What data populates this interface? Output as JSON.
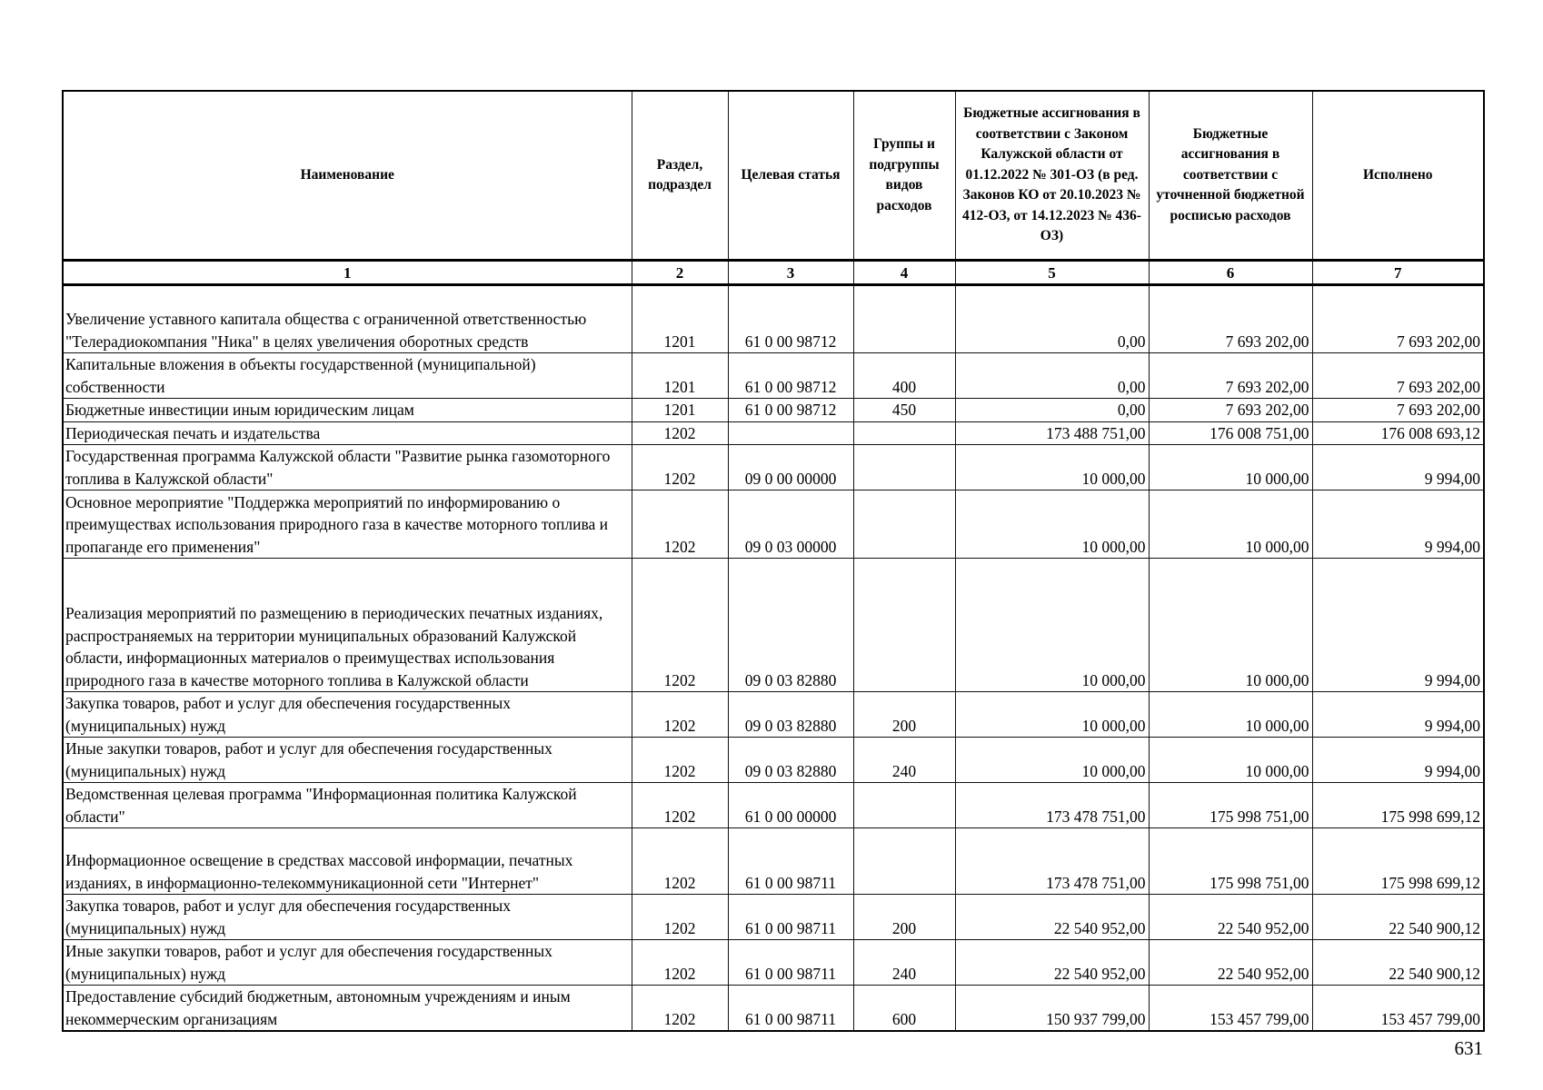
{
  "headers": [
    "Наименование",
    "Раздел, подраздел",
    "Целевая статья",
    "Группы и подгруппы видов расходов",
    "Бюджетные ассигнования в соответствии с Законом Калужской области от 01.12.2022 № 301-ОЗ (в ред. Законов КО от 20.10.2023 № 412-ОЗ, от 14.12.2023 № 436-ОЗ)",
    "Бюджетные ассигнования в соответствии с уточненной бюджетной росписью расходов",
    "Исполнено"
  ],
  "column_numbers": [
    "1",
    "2",
    "3",
    "4",
    "5",
    "6",
    "7"
  ],
  "rows": [
    {
      "name": "Увеличение уставного капитала общества с ограниченной ответственностью \"Телерадиокомпания \"Ника\" в целях увеличения оборотных средств",
      "section": "1201",
      "article": "61 0 00 98712",
      "group": "",
      "law": "0,00",
      "plan": "7 693 202,00",
      "done": "7 693 202,00"
    },
    {
      "name": "Капитальные вложения в объекты государственной (муниципальной) собственности",
      "section": "1201",
      "article": "61 0 00 98712",
      "group": "400",
      "law": "0,00",
      "plan": "7 693 202,00",
      "done": "7 693 202,00"
    },
    {
      "name": "Бюджетные инвестиции иным юридическим лицам",
      "section": "1201",
      "article": "61 0 00 98712",
      "group": "450",
      "law": "0,00",
      "plan": "7 693 202,00",
      "done": "7 693 202,00"
    },
    {
      "name": "Периодическая печать и издательства",
      "section": "1202",
      "article": "",
      "group": "",
      "law": "173 488 751,00",
      "plan": "176 008 751,00",
      "done": "176 008 693,12"
    },
    {
      "name": "Государственная программа Калужской области \"Развитие рынка газомоторного топлива в Калужской области\"",
      "section": "1202",
      "article": "09 0 00 00000",
      "group": "",
      "law": "10 000,00",
      "plan": "10 000,00",
      "done": "9 994,00"
    },
    {
      "name": "Основное мероприятие \"Поддержка мероприятий по информированию о преимуществах использования природного газа в качестве моторного топлива и пропаганде его применения\"",
      "section": "1202",
      "article": "09 0 03 00000",
      "group": "",
      "law": "10 000,00",
      "plan": "10 000,00",
      "done": "9 994,00"
    },
    {
      "name": "Реализация мероприятий по размещению в периодических печатных изданиях, распространяемых на территории муниципальных образований Калужской области, информационных материалов о преимуществах использования природного газа в качестве моторного топлива в Калужской области",
      "section": "1202",
      "article": "09 0 03 82880",
      "group": "",
      "law": "10 000,00",
      "plan": "10 000,00",
      "done": "9 994,00"
    },
    {
      "name": "Закупка товаров, работ и услуг для обеспечения государственных (муниципальных) нужд",
      "section": "1202",
      "article": "09 0 03 82880",
      "group": "200",
      "law": "10 000,00",
      "plan": "10 000,00",
      "done": "9 994,00"
    },
    {
      "name": "Иные закупки товаров, работ и услуг для обеспечения государственных (муниципальных) нужд",
      "section": "1202",
      "article": "09 0 03 82880",
      "group": "240",
      "law": "10 000,00",
      "plan": "10 000,00",
      "done": "9 994,00"
    },
    {
      "name": "Ведомственная целевая программа \"Информационная политика Калужской области\"",
      "section": "1202",
      "article": "61 0 00 00000",
      "group": "",
      "law": "173 478 751,00",
      "plan": "175 998 751,00",
      "done": "175 998 699,12"
    },
    {
      "name": "Информационное освещение в средствах массовой информации, печатных изданиях, в информационно-телекоммуникационной сети \"Интернет\"",
      "section": "1202",
      "article": "61 0 00 98711",
      "group": "",
      "law": "173 478 751,00",
      "plan": "175 998 751,00",
      "done": "175 998 699,12"
    },
    {
      "name": "Закупка товаров, работ и услуг для обеспечения государственных (муниципальных) нужд",
      "section": "1202",
      "article": "61 0 00 98711",
      "group": "200",
      "law": "22 540 952,00",
      "plan": "22 540 952,00",
      "done": "22 540 900,12"
    },
    {
      "name": "Иные закупки товаров, работ и услуг для обеспечения государственных (муниципальных) нужд",
      "section": "1202",
      "article": "61 0 00 98711",
      "group": "240",
      "law": "22 540 952,00",
      "plan": "22 540 952,00",
      "done": "22 540 900,12"
    },
    {
      "name": "Предоставление субсидий бюджетным, автономным учреждениям и иным некоммерческим организациям",
      "section": "1202",
      "article": "61 0 00 98711",
      "group": "600",
      "law": "150 937 799,00",
      "plan": "153 457 799,00",
      "done": "153 457 799,00"
    }
  ],
  "page_number": "631"
}
